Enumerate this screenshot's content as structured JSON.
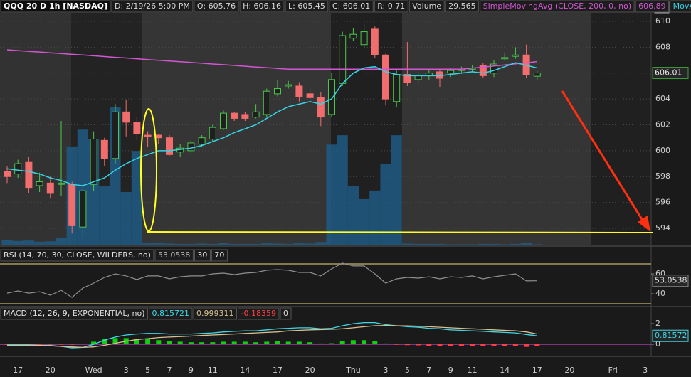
{
  "chart_data": [
    {
      "type": "candlestick",
      "title": "QQQ 20 D 1h [NASDAQ]",
      "info": [
        "D: 2/19/26 5:00 PM",
        "O: 605.76",
        "H: 606.16",
        "L: 605.45",
        "C: 606.01",
        "R: 0.71"
      ],
      "categories": [
        null,
        "17",
        null,
        null,
        "20",
        null,
        null,
        null,
        "Wed",
        null,
        null,
        "3",
        null,
        "5",
        null,
        "7",
        null,
        "9",
        null,
        "11",
        null,
        null,
        "14",
        null,
        null,
        "17",
        null,
        null,
        "20",
        null,
        null,
        null,
        "Thu",
        null,
        null,
        "3",
        null,
        "5",
        null,
        "7",
        null,
        "9",
        null,
        "11",
        null,
        null,
        "14",
        null,
        null,
        "17",
        null,
        null,
        "20",
        null,
        null,
        null,
        "Fri",
        null,
        null,
        "3"
      ],
      "open": [
        598.4,
        598.2,
        599.1,
        597.3,
        597.5,
        597.4,
        597.4,
        594.1,
        597.4,
        600.8,
        599.4,
        603.0,
        602.2,
        601.2,
        601.2,
        601.0,
        599.9,
        600.0,
        600.5,
        600.9,
        601.7,
        602.9,
        602.8,
        602.6,
        602.8,
        604.4,
        605.0,
        605.0,
        604.4,
        604.1,
        602.8,
        605.2,
        608.7,
        608.2,
        609.4,
        607.4,
        603.8,
        605.9,
        605.5,
        605.8,
        606.1,
        606.0,
        606.2,
        606.3,
        606.6,
        606.0,
        607.1,
        607.3,
        607.4,
        605.76,
        null,
        null,
        null,
        null,
        null,
        null,
        null,
        null,
        null,
        null
      ],
      "high": [
        598.8,
        599.3,
        599.5,
        598.3,
        598.0,
        602.3,
        597.6,
        597.5,
        601.5,
        601.0,
        603.6,
        603.9,
        602.6,
        601.5,
        601.3,
        601.2,
        600.5,
        600.8,
        601.2,
        602.0,
        603.1,
        603.0,
        603.0,
        603.6,
        604.8,
        605.5,
        605.4,
        605.3,
        604.9,
        604.5,
        606.0,
        609.2,
        609.5,
        609.8,
        609.6,
        607.5,
        606.2,
        608.4,
        606.1,
        606.3,
        606.3,
        606.4,
        606.5,
        606.6,
        606.8,
        607.0,
        607.6,
        608.0,
        608.2,
        606.16,
        null,
        null,
        null,
        null,
        null,
        null,
        null,
        null,
        null,
        null
      ],
      "low": [
        597.5,
        597.9,
        596.7,
        596.8,
        596.3,
        596.5,
        593.6,
        593.3,
        596.9,
        598.8,
        599.0,
        601.1,
        600.8,
        600.3,
        600.5,
        599.6,
        599.5,
        599.8,
        600.3,
        600.7,
        601.6,
        602.3,
        602.3,
        602.5,
        602.6,
        604.2,
        604.8,
        603.8,
        603.9,
        601.9,
        602.6,
        605.0,
        608.5,
        607.9,
        607.2,
        603.5,
        603.4,
        605.0,
        605.1,
        605.5,
        604.9,
        605.7,
        606.0,
        606.1,
        605.6,
        605.7,
        607.0,
        607.1,
        605.6,
        605.45,
        null,
        null,
        null,
        null,
        null,
        null,
        null,
        null,
        null,
        null
      ],
      "close": [
        598.0,
        599.0,
        597.1,
        597.6,
        596.7,
        597.5,
        594.2,
        596.9,
        600.9,
        599.4,
        603.0,
        602.2,
        601.3,
        601.1,
        601.0,
        599.7,
        600.2,
        600.6,
        601.0,
        601.8,
        602.9,
        602.5,
        602.5,
        603.0,
        604.6,
        604.8,
        605.1,
        604.2,
        604.1,
        602.6,
        605.5,
        608.9,
        609.0,
        609.2,
        607.4,
        604.0,
        605.9,
        605.3,
        605.8,
        606.0,
        605.6,
        606.2,
        606.3,
        606.4,
        605.8,
        606.7,
        607.2,
        607.4,
        605.9,
        606.01,
        null,
        null,
        null,
        null,
        null,
        null,
        null,
        null,
        null,
        null
      ],
      "up_color": "#4cc94c",
      "down_color": "#f26d6d",
      "series": [
        {
          "name": "SimpleMovingAvg (CLOSE, 200, 0, no)",
          "color": "#d356d3",
          "values": [
            607.8,
            607.74,
            607.68,
            607.63,
            607.57,
            607.51,
            607.45,
            607.4,
            607.34,
            607.28,
            607.22,
            607.17,
            607.11,
            607.05,
            606.99,
            606.93,
            606.88,
            606.82,
            606.76,
            606.7,
            606.65,
            606.59,
            606.53,
            606.47,
            606.42,
            606.36,
            606.3,
            606.3,
            606.3,
            606.3,
            606.3,
            606.3,
            606.3,
            606.3,
            606.3,
            606.3,
            606.3,
            606.3,
            606.3,
            606.3,
            606.3,
            606.3,
            606.3,
            606.38,
            606.46,
            606.55,
            606.63,
            606.72,
            606.8,
            606.89,
            null,
            null,
            null,
            null,
            null,
            null,
            null,
            null,
            null,
            null
          ]
        },
        {
          "name": "MovAvg...",
          "color": "#35d4e6",
          "values": [
            598.6,
            598.5,
            598.4,
            598.2,
            597.9,
            597.7,
            597.4,
            597.3,
            597.6,
            597.9,
            598.5,
            599.0,
            599.4,
            599.7,
            600.0,
            600.0,
            600.1,
            600.2,
            600.4,
            600.7,
            601.0,
            601.4,
            601.7,
            602.0,
            602.5,
            603.0,
            603.4,
            603.6,
            603.8,
            603.6,
            604.0,
            605.2,
            606.0,
            606.4,
            606.5,
            606.1,
            605.9,
            605.8,
            605.8,
            605.8,
            605.8,
            605.9,
            606.0,
            606.1,
            606.0,
            606.2,
            606.5,
            606.8,
            606.6,
            606.4,
            null,
            null,
            null,
            null,
            null,
            null,
            null,
            null,
            null,
            null
          ]
        }
      ],
      "volume": {
        "name": "Volume",
        "color": "#1f5b84",
        "last_label": "29,565",
        "vlim": [
          0,
          6000000
        ],
        "values": [
          150000,
          120000,
          130000,
          100000,
          110000,
          200000,
          2650000,
          3100000,
          2850000,
          1580000,
          3700000,
          1430000,
          2530000,
          60000,
          80000,
          50000,
          40000,
          40000,
          50000,
          40000,
          60000,
          40000,
          40000,
          40000,
          70000,
          50000,
          40000,
          60000,
          50000,
          90000,
          2700000,
          2950000,
          1580000,
          1240000,
          1470000,
          2190000,
          2950000,
          50000,
          40000,
          40000,
          40000,
          30000,
          30000,
          30000,
          40000,
          40000,
          30000,
          40000,
          60000,
          29565,
          null,
          null,
          null,
          null,
          null,
          null,
          null,
          null,
          null,
          null
        ]
      },
      "ylim": [
        592.68,
        610.66
      ],
      "yticks": [
        594,
        596,
        598,
        600,
        602,
        604,
        606,
        608,
        610
      ],
      "grid": true
    },
    {
      "type": "line",
      "title": "RSI (14, 70, 30, CLOSE, WILDERS, no)",
      "levels": [
        30,
        70
      ],
      "levels_color": "#a89a62",
      "series": [
        {
          "color": "#8f8f8f",
          "values": [
            40.7,
            42.9,
            40.7,
            42.1,
            38.6,
            43.6,
            36.4,
            45.7,
            50.7,
            56.4,
            60.0,
            57.9,
            54.3,
            57.9,
            57.9,
            55.0,
            57.1,
            57.9,
            57.9,
            60.0,
            60.7,
            59.3,
            60.7,
            61.4,
            63.6,
            64.3,
            63.6,
            61.4,
            61.4,
            57.9,
            65.0,
            70.7,
            67.9,
            67.9,
            60.0,
            50.7,
            55.0,
            56.4,
            55.7,
            57.1,
            55.0,
            57.1,
            56.4,
            57.9,
            55.0,
            57.1,
            58.6,
            60.0,
            52.9,
            53.0538
          ]
        }
      ],
      "ylim": [
        27.9,
        87.1
      ],
      "yticks": [
        40,
        60
      ]
    },
    {
      "type": "macd",
      "title": "MACD (12, 26, 9, EXPONENTIAL, no)",
      "zero_line": 0,
      "zero_color": "#c040c0",
      "marker_label": "0.81572",
      "series": [
        {
          "color": "#40d8e8",
          "values": [
            -0.05,
            -0.05,
            -0.05,
            -0.1,
            -0.1,
            -0.2,
            -0.35,
            -0.3,
            0.0,
            0.4,
            0.7,
            0.9,
            1.0,
            1.05,
            1.05,
            1.0,
            1.0,
            1.0,
            1.05,
            1.1,
            1.2,
            1.25,
            1.3,
            1.3,
            1.4,
            1.5,
            1.55,
            1.6,
            1.6,
            1.5,
            1.55,
            1.8,
            2.0,
            2.1,
            2.1,
            1.9,
            1.8,
            1.7,
            1.65,
            1.55,
            1.5,
            1.4,
            1.35,
            1.3,
            1.25,
            1.2,
            1.15,
            1.1,
            0.95,
            0.815721
          ]
        },
        {
          "color": "#d8c090",
          "values": [
            -0.1,
            -0.1,
            -0.1,
            -0.1,
            -0.15,
            -0.2,
            -0.25,
            -0.3,
            -0.25,
            -0.1,
            0.1,
            0.3,
            0.45,
            0.55,
            0.65,
            0.7,
            0.75,
            0.8,
            0.85,
            0.9,
            0.95,
            1.0,
            1.05,
            1.1,
            1.15,
            1.2,
            1.3,
            1.35,
            1.4,
            1.42,
            1.45,
            1.5,
            1.6,
            1.7,
            1.8,
            1.82,
            1.8,
            1.78,
            1.75,
            1.7,
            1.65,
            1.6,
            1.55,
            1.5,
            1.45,
            1.4,
            1.35,
            1.3,
            1.2,
            0.999311
          ]
        },
        {
          "color": "#ff4040",
          "up_color": "#10d010",
          "values": [
            -0.05,
            -0.05,
            -0.05,
            -0.05,
            -0.05,
            -0.05,
            -0.05,
            0.05,
            0.25,
            0.5,
            0.6,
            0.6,
            0.55,
            0.5,
            0.4,
            0.3,
            0.25,
            0.2,
            0.2,
            0.2,
            0.25,
            0.25,
            0.25,
            0.2,
            0.25,
            0.3,
            0.25,
            0.25,
            0.2,
            0.08,
            0.1,
            0.3,
            0.4,
            0.4,
            0.3,
            0.08,
            -0.05,
            -0.08,
            -0.1,
            -0.15,
            -0.15,
            -0.2,
            -0.2,
            -0.2,
            -0.2,
            -0.2,
            -0.2,
            -0.2,
            -0.25,
            -0.18359
          ]
        }
      ],
      "ylim": [
        -1.1,
        3.59
      ],
      "yticks": [
        0,
        2
      ]
    }
  ]
}
